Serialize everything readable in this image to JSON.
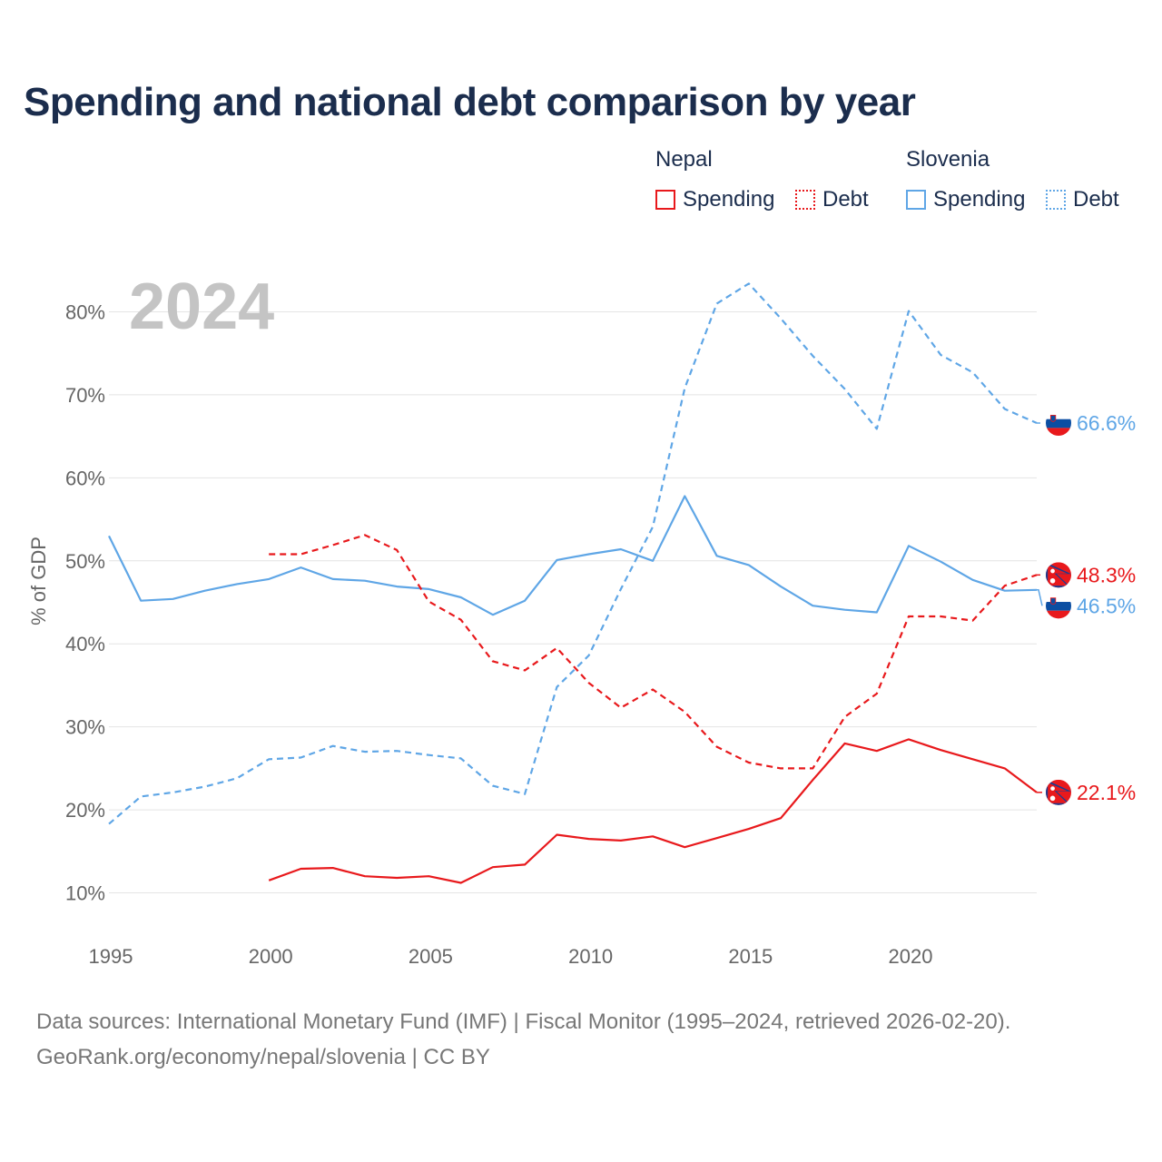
{
  "title": "Spending and national debt comparison by year",
  "legend": {
    "nepal": {
      "name": "Nepal",
      "spending": "Spending",
      "debt": "Debt"
    },
    "slovenia": {
      "name": "Slovenia",
      "spending": "Spending",
      "debt": "Debt"
    }
  },
  "colors": {
    "nepal": "#e8191c",
    "slovenia": "#5fa6e6"
  },
  "footer": {
    "line1": "Data sources: International Monetary Fund (IMF) | Fiscal Monitor (1995–2024, retrieved 2026-02-20).",
    "line2": "GeoRank.org/economy/nepal/slovenia | CC BY"
  },
  "chart_data": {
    "type": "line",
    "year_label": "2024",
    "ylabel": "% of GDP",
    "xlim": [
      1995,
      2024
    ],
    "ylim": [
      5,
      85
    ],
    "x_ticks": [
      "1995",
      "2000",
      "2005",
      "2010",
      "2015",
      "2020"
    ],
    "y_ticks": [
      "10%",
      "20%",
      "30%",
      "40%",
      "50%",
      "60%",
      "70%",
      "80%"
    ],
    "series": [
      {
        "name": "Slovenia Debt",
        "country": "slovenia",
        "dashed": true,
        "end_label": "66.6%",
        "x": [
          1995,
          1996,
          1997,
          1998,
          1999,
          2000,
          2001,
          2002,
          2003,
          2004,
          2005,
          2006,
          2007,
          2008,
          2009,
          2010,
          2011,
          2012,
          2013,
          2014,
          2015,
          2016,
          2017,
          2018,
          2019,
          2020,
          2021,
          2022,
          2023,
          2024
        ],
        "values": [
          18.3,
          21.6,
          22.1,
          22.8,
          23.8,
          26.1,
          26.3,
          27.7,
          27.0,
          27.1,
          26.6,
          26.2,
          22.9,
          21.9,
          34.8,
          38.6,
          46.6,
          54.1,
          70.8,
          81.0,
          83.4,
          79.2,
          74.7,
          70.7,
          65.9,
          80.1,
          74.8,
          72.7,
          68.3,
          66.6
        ]
      },
      {
        "name": "Slovenia Spending",
        "country": "slovenia",
        "dashed": false,
        "end_label": "46.5%",
        "x": [
          1995,
          1996,
          1997,
          1998,
          1999,
          2000,
          2001,
          2002,
          2003,
          2004,
          2005,
          2006,
          2007,
          2008,
          2009,
          2010,
          2011,
          2012,
          2013,
          2014,
          2015,
          2016,
          2017,
          2018,
          2019,
          2020,
          2021,
          2022,
          2023,
          2024
        ],
        "values": [
          53.0,
          45.2,
          45.4,
          46.4,
          47.2,
          47.8,
          49.2,
          47.8,
          47.6,
          46.9,
          46.6,
          45.6,
          43.5,
          45.2,
          50.1,
          50.8,
          51.4,
          50.0,
          57.8,
          50.6,
          49.5,
          46.9,
          44.6,
          44.1,
          43.8,
          51.8,
          49.9,
          47.7,
          46.4,
          46.5
        ]
      },
      {
        "name": "Nepal Debt",
        "country": "nepal",
        "dashed": true,
        "end_label": "48.3%",
        "x": [
          2000,
          2001,
          2002,
          2003,
          2004,
          2005,
          2006,
          2007,
          2008,
          2009,
          2010,
          2011,
          2012,
          2013,
          2014,
          2015,
          2016,
          2017,
          2018,
          2019,
          2020,
          2021,
          2022,
          2023,
          2024
        ],
        "values": [
          50.8,
          50.8,
          51.9,
          53.1,
          51.3,
          45.1,
          42.9,
          37.9,
          36.8,
          39.5,
          35.3,
          32.3,
          34.5,
          31.8,
          27.6,
          25.7,
          25.0,
          25.0,
          31.2,
          34.0,
          43.3,
          43.3,
          42.8,
          47.0,
          48.3
        ]
      },
      {
        "name": "Nepal Spending",
        "country": "nepal",
        "dashed": false,
        "end_label": "22.1%",
        "x": [
          2000,
          2001,
          2002,
          2003,
          2004,
          2005,
          2006,
          2007,
          2008,
          2009,
          2010,
          2011,
          2012,
          2013,
          2014,
          2015,
          2016,
          2017,
          2018,
          2019,
          2020,
          2021,
          2022,
          2023,
          2024
        ],
        "values": [
          11.5,
          12.9,
          13.0,
          12.0,
          11.8,
          12.0,
          11.2,
          13.1,
          13.4,
          17.0,
          16.5,
          16.3,
          16.8,
          15.5,
          16.6,
          17.7,
          19.0,
          23.6,
          28.0,
          27.1,
          28.5,
          27.2,
          26.1,
          25.0,
          22.1
        ]
      }
    ]
  }
}
